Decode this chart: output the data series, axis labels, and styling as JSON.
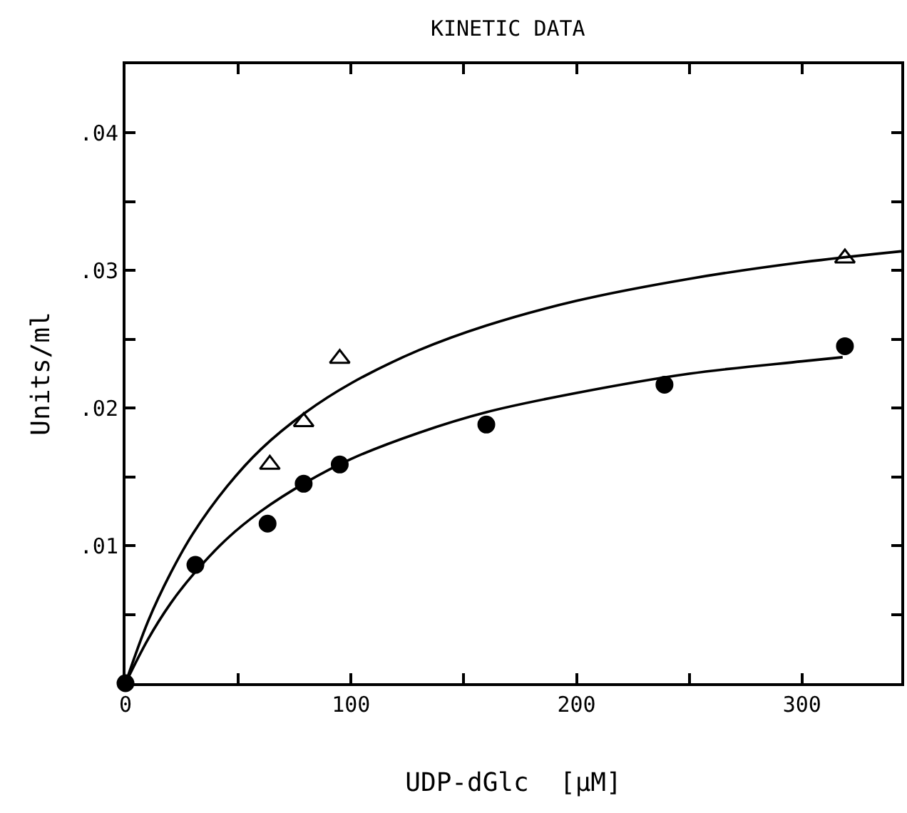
{
  "chart_data": {
    "type": "scatter",
    "title": "KINETIC DATA",
    "xlabel": "UDP-dGlc  [µM]",
    "ylabel": "Units/ml",
    "xlim": [
      0,
      344
    ],
    "ylim": [
      0,
      0.045
    ],
    "xticks": [
      0,
      {
        "value": 50,
        "label": null
      },
      100,
      {
        "value": 150,
        "label": null
      },
      200,
      {
        "value": 250,
        "label": null
      },
      300
    ],
    "yticks": [
      {
        "value": 0,
        "label": null
      },
      {
        "value": 0.005,
        "label": null
      },
      {
        "value": 0.01,
        "label": ".01"
      },
      {
        "value": 0.015,
        "label": null
      },
      {
        "value": 0.02,
        "label": ".02"
      },
      {
        "value": 0.025,
        "label": null
      },
      {
        "value": 0.03,
        "label": ".03"
      },
      {
        "value": 0.035,
        "label": null
      },
      {
        "value": 0.04,
        "label": ".04"
      }
    ],
    "series": [
      {
        "marker": "triangle",
        "color": "#000000",
        "x": [
          64,
          79,
          95,
          319
        ],
        "values": [
          0.0159,
          0.019,
          0.0236,
          0.0309
        ]
      },
      {
        "marker": "circle",
        "color": "#000000",
        "x": [
          0,
          31,
          63,
          79,
          95,
          160,
          239,
          319
        ],
        "values": [
          0,
          0.0086,
          0.0116,
          0.0145,
          0.0159,
          0.0188,
          0.0217,
          0.0245
        ]
      },
      {
        "type": "line",
        "marker": "none",
        "color": "#000000",
        "x": [
          0,
          10,
          20,
          30,
          45,
          60,
          80,
          100,
          130,
          160,
          200,
          250,
          300,
          344
        ],
        "values": [
          0,
          0.0045,
          0.008,
          0.0109,
          0.0143,
          0.017,
          0.0197,
          0.0218,
          0.0242,
          0.026,
          0.0278,
          0.0294,
          0.0306,
          0.0314
        ]
      },
      {
        "type": "line",
        "marker": "none",
        "color": "#000000",
        "x": [
          0,
          10,
          20,
          30,
          45,
          60,
          80,
          100,
          130,
          160,
          200,
          250,
          300,
          318
        ],
        "values": [
          0,
          0.0032,
          0.0058,
          0.0079,
          0.0105,
          0.0125,
          0.0146,
          0.0163,
          0.0182,
          0.0197,
          0.0211,
          0.0225,
          0.0234,
          0.0237
        ]
      }
    ]
  }
}
